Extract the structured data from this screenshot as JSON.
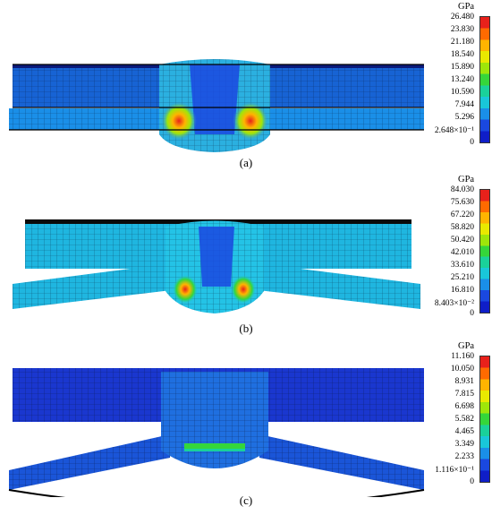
{
  "panels": [
    {
      "caption": "(a)",
      "unit": "GPa",
      "ticks": [
        "26.480",
        "23.830",
        "21.180",
        "18.540",
        "15.890",
        "13.240",
        "10.590",
        "7.944",
        "5.296",
        "2.648×10⁻¹",
        "0"
      ],
      "max": 26.48
    },
    {
      "caption": "(b)",
      "unit": "GPa",
      "ticks": [
        "84.030",
        "75.630",
        "67.220",
        "58.820",
        "50.420",
        "42.010",
        "33.610",
        "25.210",
        "16.810",
        "8.403×10⁻²",
        "0"
      ],
      "max": 84.03
    },
    {
      "caption": "(c)",
      "unit": "GPa",
      "ticks": [
        "11.160",
        "10.050",
        "8.931",
        "7.815",
        "6.698",
        "5.582",
        "4.465",
        "3.349",
        "2.233",
        "1.116×10⁻¹",
        "0"
      ],
      "max": 11.16
    }
  ],
  "colormap": [
    "#e8211b",
    "#ff6a00",
    "#ffb400",
    "#e9e900",
    "#9ee60a",
    "#35d63a",
    "#1ad19a",
    "#19c7d9",
    "#1a8fe8",
    "#1a48e0",
    "#0f1ec8"
  ]
}
